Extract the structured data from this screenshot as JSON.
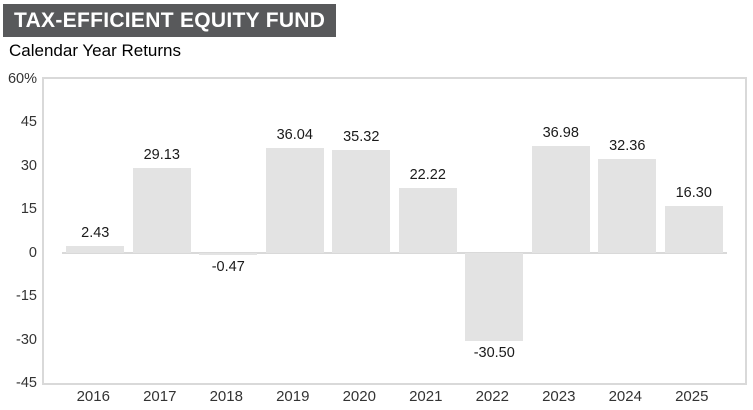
{
  "header": {
    "title": "TAX-EFFICIENT EQUITY FUND",
    "subtitle": "Calendar Year Returns"
  },
  "colors": {
    "title_bg": "#58595b",
    "title_text": "#ffffff",
    "bar": "#e3e3e3",
    "plot_border": "#d9d9d9",
    "zero_line": "#d9d9d9",
    "axis_text": "#333333",
    "value_text": "#1a1a1a"
  },
  "chart_data": {
    "type": "bar",
    "title": "TAX-EFFICIENT EQUITY FUND",
    "subtitle": "Calendar Year Returns",
    "categories": [
      "2016",
      "2017",
      "2018",
      "2019",
      "2020",
      "2021",
      "2022",
      "2023",
      "2024",
      "2025"
    ],
    "values": [
      2.43,
      29.13,
      -0.47,
      36.04,
      35.32,
      22.22,
      -30.5,
      36.98,
      32.36,
      16.3
    ],
    "value_labels": [
      "2.43",
      "29.13",
      "-0.47",
      "36.04",
      "35.32",
      "22.22",
      "-30.50",
      "36.98",
      "32.36",
      "16.30"
    ],
    "xlabel": "",
    "ylabel": "",
    "ylim": [
      -45,
      60
    ],
    "yticks": [
      {
        "label": "60%",
        "value": 60
      },
      {
        "label": "45",
        "value": 45
      },
      {
        "label": "30",
        "value": 30
      },
      {
        "label": "15",
        "value": 15
      },
      {
        "label": "0",
        "value": 0
      },
      {
        "label": "-15",
        "value": -15
      },
      {
        "label": "-30",
        "value": -30
      },
      {
        "label": "-45",
        "value": -45
      }
    ],
    "grid": false,
    "legend": "none"
  }
}
